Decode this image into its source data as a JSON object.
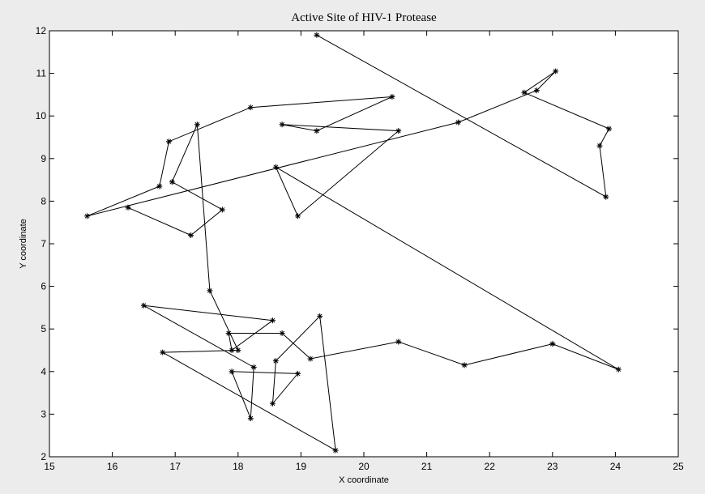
{
  "chart_data": {
    "type": "line",
    "title": "Active Site of HIV-1 Protease",
    "xlabel": "X coordinate",
    "ylabel": "Y coordinate",
    "xlim": [
      15,
      25
    ],
    "ylim": [
      2,
      12
    ],
    "xticks": [
      15,
      16,
      17,
      18,
      19,
      20,
      21,
      22,
      23,
      24,
      25
    ],
    "yticks": [
      2,
      3,
      4,
      5,
      6,
      7,
      8,
      9,
      10,
      11,
      12
    ],
    "grid": false,
    "marker": "star",
    "series": [
      {
        "x": [
          19.25,
          23.85,
          23.75,
          23.9,
          22.55,
          23.05,
          22.75,
          21.5,
          15.6,
          16.75,
          16.9,
          18.2,
          20.45,
          19.25,
          18.7,
          20.55,
          18.95,
          18.6,
          24.05,
          23.0,
          21.6,
          20.55,
          19.15,
          18.7,
          17.85,
          17.9,
          18.55,
          16.5,
          18.25,
          18.2,
          17.9,
          18.95,
          18.55,
          18.6,
          19.3,
          19.55,
          16.8,
          18.0,
          17.55,
          17.35,
          16.95,
          17.75,
          17.25,
          16.25
        ],
        "y": [
          11.9,
          8.1,
          9.3,
          9.7,
          10.55,
          11.05,
          10.6,
          9.85,
          7.65,
          8.35,
          9.4,
          10.2,
          10.45,
          9.65,
          9.8,
          9.65,
          7.65,
          8.8,
          4.05,
          4.65,
          4.15,
          4.7,
          4.3,
          4.9,
          4.9,
          4.5,
          5.2,
          5.55,
          4.1,
          2.9,
          4.0,
          3.95,
          3.25,
          4.25,
          5.3,
          2.15,
          4.45,
          4.5,
          5.9,
          9.8,
          8.45,
          7.8,
          7.2,
          7.85
        ]
      }
    ]
  }
}
